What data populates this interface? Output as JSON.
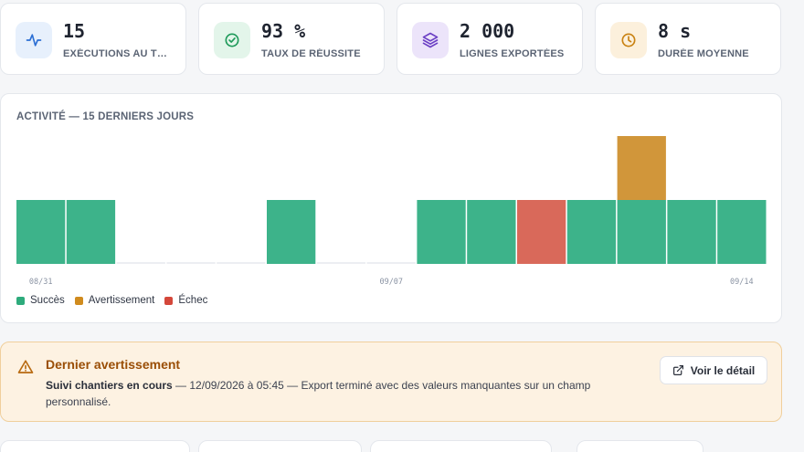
{
  "stats": [
    {
      "value": "15",
      "label": "EXÉCUTIONS AU T…",
      "icon": "activity-icon",
      "icon_color": "#2c6fd4",
      "icon_bg": "#e7f0fc"
    },
    {
      "value": "93 %",
      "label": "TAUX DE RÉUSSITE",
      "icon": "check-circle-icon",
      "icon_color": "#1f9a5a",
      "icon_bg": "#e3f5ea"
    },
    {
      "value": "2 000",
      "label": "LIGNES EXPORTÉES",
      "icon": "layers-icon",
      "icon_color": "#6b3fc4",
      "icon_bg": "#ece4fa"
    },
    {
      "value": "8 s",
      "label": "DURÉE MOYENNE",
      "icon": "clock-icon",
      "icon_color": "#c98212",
      "icon_bg": "#fcf0dc"
    }
  ],
  "activity": {
    "title": "ACTIVITÉ — 15 DERNIERS JOURS",
    "legend": [
      {
        "label": "Succès",
        "color": "#3db38a"
      },
      {
        "label": "Avertissement",
        "color": "#d1963a"
      },
      {
        "label": "Échec",
        "color": "#d9695a"
      }
    ]
  },
  "chart_data": {
    "type": "bar",
    "stacked": true,
    "title": "ACTIVITÉ — 15 DERNIERS JOURS",
    "categories": [
      "08/31",
      "09/01",
      "09/02",
      "09/03",
      "09/04",
      "09/05",
      "09/06",
      "09/07",
      "09/08",
      "09/09",
      "09/10",
      "09/11",
      "09/12",
      "09/13",
      "09/14"
    ],
    "tick_labels": [
      "08/31",
      "09/07",
      "09/14"
    ],
    "series": [
      {
        "name": "Succès",
        "color": "#3db38a",
        "values": [
          1,
          1,
          0,
          0,
          0,
          1,
          0,
          0,
          1,
          1,
          0,
          1,
          1,
          1,
          1
        ]
      },
      {
        "name": "Avertissement",
        "color": "#d1963a",
        "values": [
          0,
          0,
          0,
          0,
          0,
          0,
          0,
          0,
          0,
          0,
          0,
          0,
          1,
          0,
          0
        ]
      },
      {
        "name": "Échec",
        "color": "#d9695a",
        "values": [
          0,
          0,
          0,
          0,
          0,
          0,
          0,
          0,
          0,
          0,
          1,
          0,
          0,
          0,
          0
        ]
      }
    ],
    "ylim": [
      0,
      2
    ],
    "grid": false,
    "legend_position": "bottom-left"
  },
  "warning": {
    "title": "Dernier avertissement",
    "job": "Suivi chantiers en cours",
    "message": " — 12/09/2026 à 05:45 — Export terminé avec des valeurs manquantes sur un champ personnalisé.",
    "button_label": "Voir le détail",
    "icon": "warning-icon",
    "button_icon": "external-link-icon"
  }
}
